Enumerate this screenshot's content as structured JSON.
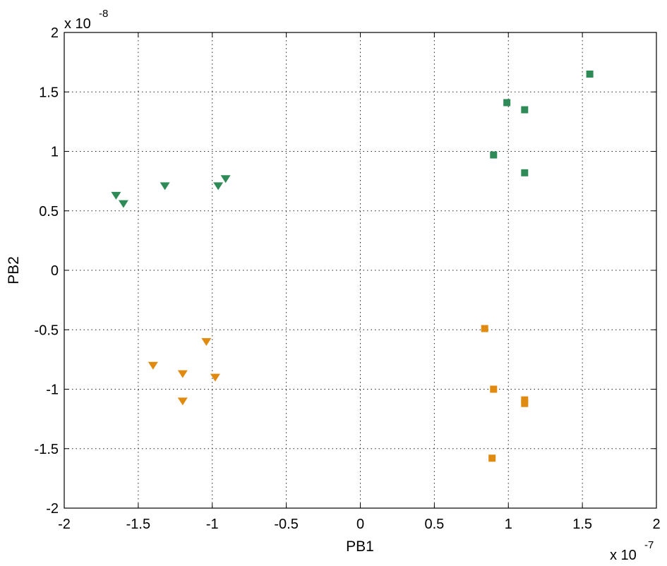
{
  "chart_data": {
    "type": "scatter",
    "xlabel": "PB1",
    "ylabel": "PB2",
    "x_exponent_label": "x 10",
    "x_exponent": "-7",
    "y_exponent_label": "x 10",
    "y_exponent": "-8",
    "xlim": [
      -2,
      2
    ],
    "ylim": [
      -2,
      2
    ],
    "xticks": [
      -2,
      -1.5,
      -1,
      -0.5,
      0,
      0.5,
      1,
      1.5,
      2
    ],
    "yticks": [
      -2,
      -1.5,
      -1,
      -0.5,
      0,
      0.5,
      1,
      1.5,
      2
    ],
    "xtick_labels": [
      "-2",
      "-1.5",
      "-1",
      "-0.5",
      "0",
      "0.5",
      "1",
      "1.5",
      "2"
    ],
    "ytick_labels": [
      "-2",
      "-1.5",
      "-1",
      "-0.5",
      "0",
      "0.5",
      "1",
      "1.5",
      "2"
    ],
    "grid": true,
    "series": [
      {
        "marker": "triangle-down",
        "color": "#2e8b57",
        "points": [
          [
            -1.65,
            0.63
          ],
          [
            -1.6,
            0.56
          ],
          [
            -1.32,
            0.71
          ],
          [
            -0.96,
            0.71
          ],
          [
            -0.91,
            0.77
          ]
        ]
      },
      {
        "marker": "square",
        "color": "#2e8b57",
        "points": [
          [
            0.9,
            0.97
          ],
          [
            0.99,
            1.41
          ],
          [
            1.11,
            1.35
          ],
          [
            1.11,
            0.82
          ],
          [
            1.55,
            1.65
          ]
        ]
      },
      {
        "marker": "triangle-down",
        "color": "#e08a10",
        "points": [
          [
            -1.4,
            -0.8
          ],
          [
            -1.2,
            -0.87
          ],
          [
            -1.2,
            -1.1
          ],
          [
            -1.04,
            -0.6
          ],
          [
            -0.98,
            -0.9
          ]
        ]
      },
      {
        "marker": "square",
        "color": "#e08a10",
        "points": [
          [
            0.84,
            -0.49
          ],
          [
            0.9,
            -1.0
          ],
          [
            0.89,
            -1.58
          ],
          [
            1.11,
            -1.09
          ],
          [
            1.11,
            -1.12
          ]
        ]
      }
    ]
  }
}
